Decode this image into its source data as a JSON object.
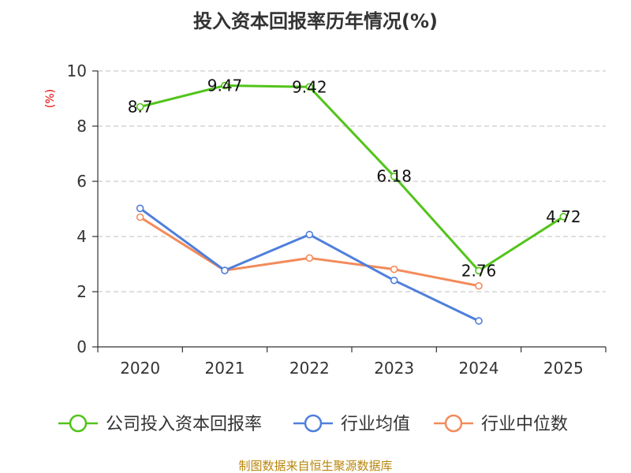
{
  "chart_data": {
    "type": "line",
    "title": "投入资本回报率历年情况(%)",
    "ylabel": "(%)",
    "xlabel": "",
    "categories": [
      "2020",
      "2021",
      "2022",
      "2023",
      "2024",
      "2025"
    ],
    "ylim": [
      0,
      10
    ],
    "yticks": [
      0,
      2,
      4,
      6,
      8,
      10
    ],
    "grid": true,
    "legend_position": "bottom",
    "series": [
      {
        "name": "公司投入资本回报率",
        "color": "#52c41a",
        "values": [
          8.7,
          9.47,
          9.42,
          6.18,
          2.76,
          4.72
        ],
        "labels": [
          "8.7",
          "9.47",
          "9.42",
          "6.18",
          "2.76",
          "4.72"
        ]
      },
      {
        "name": "行业均值",
        "color": "#4f7fdc",
        "values": [
          5.02,
          2.77,
          4.07,
          2.41,
          0.94,
          null
        ]
      },
      {
        "name": "行业中位数",
        "color": "#f28b5b",
        "values": [
          4.7,
          2.77,
          3.22,
          2.81,
          2.21,
          null
        ]
      }
    ]
  },
  "source_text": "制图数据来自恒生聚源数据库"
}
